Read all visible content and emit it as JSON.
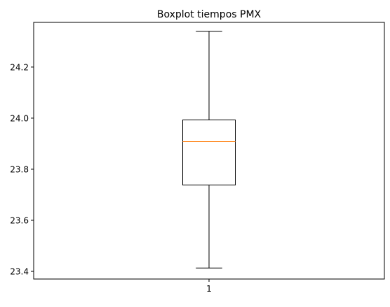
{
  "chart_data": {
    "type": "boxplot",
    "title": "Boxplot tiempos PMX",
    "xlabel": "",
    "ylabel": "",
    "categories": [
      "1"
    ],
    "ylim": [
      23.37,
      24.375
    ],
    "yticks": [
      23.4,
      23.6,
      23.8,
      24.0,
      24.2
    ],
    "ytick_labels": [
      "23.4",
      "23.6",
      "23.8",
      "24.0",
      "24.2"
    ],
    "grid": false,
    "boxes": [
      {
        "category": "1",
        "whisker_low": 23.413,
        "q1": 23.738,
        "median": 23.908,
        "q3": 23.993,
        "whisker_high": 24.34
      }
    ],
    "colors": {
      "box": "#000000",
      "median": "#ff7f0e",
      "axes": "#000000"
    }
  }
}
